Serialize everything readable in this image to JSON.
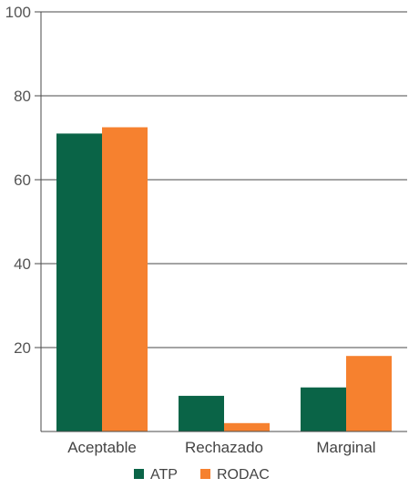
{
  "chart_data": {
    "type": "bar",
    "categories": [
      "Aceptable",
      "Rechazado",
      "Marginal"
    ],
    "series": [
      {
        "name": "ATP",
        "values": [
          71,
          8.5,
          10.5
        ]
      },
      {
        "name": "RODAC",
        "values": [
          72.5,
          2,
          18
        ]
      }
    ],
    "ylim": [
      0,
      100
    ],
    "yticks": [
      20,
      40,
      60,
      80,
      100
    ],
    "grid": true,
    "legend": "bottom",
    "colors": {
      "ATP": "#0a6447",
      "RODAC": "#f6812f"
    }
  }
}
